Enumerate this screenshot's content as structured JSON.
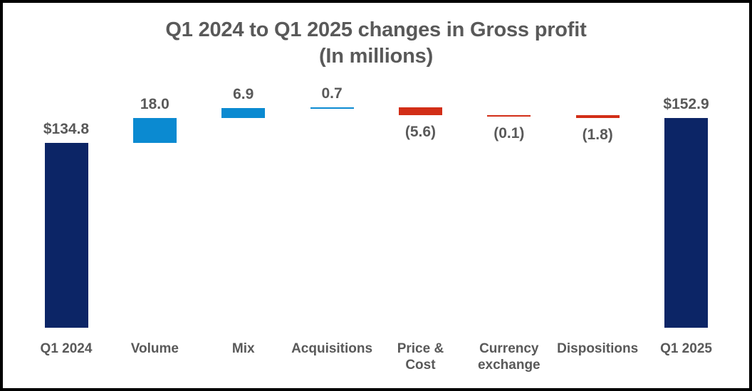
{
  "page": {
    "background": "#ffffff",
    "border_color": "#000000"
  },
  "title": {
    "line1": "Q1 2024 to Q1 2025 changes in Gross profit",
    "line2": "(In millions)"
  },
  "colors": {
    "total_bar": "#0c2566",
    "increase_bar": "#0b8ad1",
    "decrease_bar": "#d22e17",
    "text": "#595959"
  },
  "chart_data": {
    "type": "bar",
    "subtype": "waterfall",
    "title": "Q1 2024 to Q1 2025 changes in Gross profit (In millions)",
    "unit": "millions of dollars",
    "categories": [
      "Q1 2024",
      "Volume",
      "Mix",
      "Acquisitions",
      "Price &\nCost",
      "Currency\nexchange",
      "Dispositions",
      "Q1 2025"
    ],
    "bars": [
      {
        "label": "Q1 2024",
        "value": 134.8,
        "display": "$134.8",
        "kind": "total",
        "label_position": "above"
      },
      {
        "label": "Volume",
        "value": 18.0,
        "display": "18.0",
        "kind": "increase",
        "label_position": "above"
      },
      {
        "label": "Mix",
        "value": 6.9,
        "display": "6.9",
        "kind": "increase",
        "label_position": "above"
      },
      {
        "label": "Acquisitions",
        "value": 0.7,
        "display": "0.7",
        "kind": "increase",
        "label_position": "above"
      },
      {
        "label": "Price & Cost",
        "value": -5.6,
        "display": "(5.6)",
        "kind": "decrease",
        "label_position": "below"
      },
      {
        "label": "Currency exchange",
        "value": -0.1,
        "display": "(0.1)",
        "kind": "decrease",
        "label_position": "below"
      },
      {
        "label": "Dispositions",
        "value": -1.8,
        "display": "(1.8)",
        "kind": "decrease",
        "label_position": "below"
      },
      {
        "label": "Q1 2025",
        "value": 152.9,
        "display": "$152.9",
        "kind": "total",
        "label_position": "above"
      }
    ],
    "start_total": 134.8,
    "end_total": 152.9,
    "value_axis_visible": false,
    "category_axis_line_visible": false,
    "grid": false,
    "legend": false
  }
}
